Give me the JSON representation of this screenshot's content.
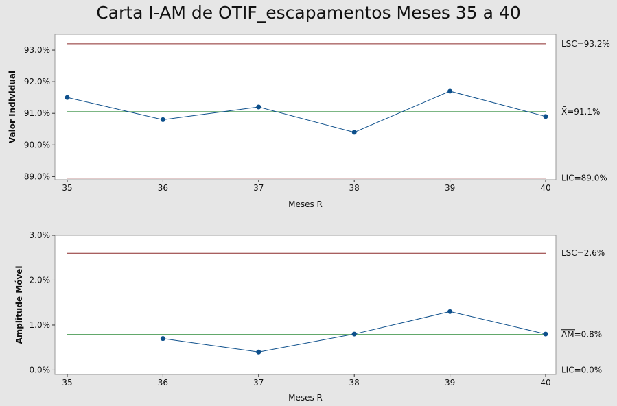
{
  "chart_data": [
    {
      "type": "line",
      "title": "Carta I-AM de OTIF_escapamentos Meses 35 a 40",
      "xlabel": "Meses R",
      "ylabel": "Valor Individual",
      "x": [
        35,
        36,
        37,
        38,
        39,
        40
      ],
      "ylim": [
        88.9,
        93.5
      ],
      "yticks": [
        "89.0%",
        "90.0%",
        "91.0%",
        "92.0%",
        "93.0%"
      ],
      "ytick_values": [
        89.0,
        90.0,
        91.0,
        92.0,
        93.0
      ],
      "series": [
        {
          "values": [
            91.5,
            90.8,
            91.2,
            90.4,
            91.7,
            90.9
          ]
        }
      ],
      "lines": {
        "ucl": 93.2,
        "center": 91.05,
        "lcl": 88.95,
        "ucl_label": "LSC=93.2%",
        "center_label": "X̄=91.1%",
        "lcl_label": "LIC=89.0%"
      },
      "colors": {
        "series": "#0d4f8b",
        "center": "#2e8b3a",
        "limits": "#8b2a2a"
      }
    },
    {
      "type": "line",
      "xlabel": "Meses R",
      "ylabel": "Amplitude Móvel",
      "x": [
        35,
        36,
        37,
        38,
        39,
        40
      ],
      "ylim": [
        -0.1,
        3.0
      ],
      "yticks": [
        "0.0%",
        "1.0%",
        "2.0%",
        "3.0%"
      ],
      "ytick_values": [
        0.0,
        1.0,
        2.0,
        3.0
      ],
      "series": [
        {
          "x": [
            36,
            37,
            38,
            39,
            40
          ],
          "values": [
            0.7,
            0.4,
            0.8,
            1.3,
            0.8
          ]
        }
      ],
      "lines": {
        "ucl": 2.6,
        "center": 0.79,
        "lcl": 0.0,
        "ucl_label": "LSC=2.6%",
        "center_label": "AM=0.8%",
        "lcl_label": "LIC=0.0%"
      },
      "colors": {
        "series": "#0d4f8b",
        "center": "#2e8b3a",
        "limits": "#8b2a2a"
      }
    }
  ]
}
